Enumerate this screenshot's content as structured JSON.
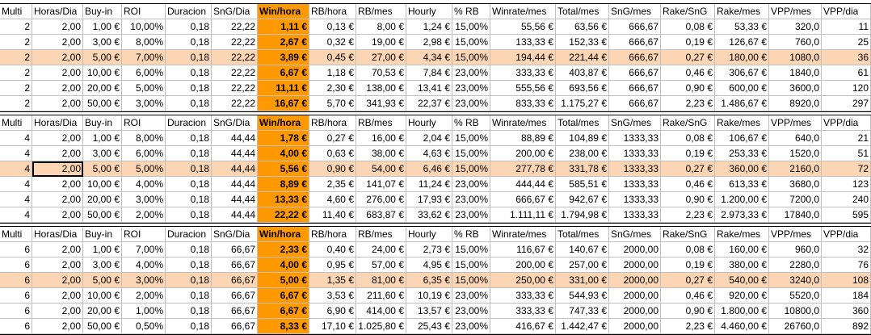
{
  "columns": [
    "Multi",
    "Horas/Dia",
    "Buy-in",
    "ROI",
    "Duracion",
    "SnG/Dia",
    "Win/hora",
    "RB/hora",
    "RB/mes",
    "Hourly",
    "% RB",
    "Winrate/mes",
    "Total/mes",
    "SnG/mes",
    "Rake/SnG",
    "Rake/mes",
    "VPP/mes",
    "VPP/dia"
  ],
  "colors": {
    "win_column": "#ff9900",
    "highlight_row": "#fcd5b4",
    "grid": "#c0c0c0"
  },
  "blocks": [
    {
      "rows": [
        [
          "2",
          "2,00",
          "1,00 €",
          "10,00%",
          "0,18",
          "22,22",
          "1,11 €",
          "0,13 €",
          "8,00 €",
          "1,24 €",
          "15,00%",
          "55,56 €",
          "63,56 €",
          "666,67",
          "0,08 €",
          "53,33 €",
          "320,0",
          "11"
        ],
        [
          "2",
          "2,00",
          "3,00 €",
          "8,00%",
          "0,18",
          "22,22",
          "2,67 €",
          "0,32 €",
          "19,00 €",
          "2,98 €",
          "15,00%",
          "133,33 €",
          "152,33 €",
          "666,67",
          "0,19 €",
          "126,67 €",
          "760,0",
          "25"
        ],
        [
          "2",
          "2,00",
          "5,00 €",
          "7,00%",
          "0,18",
          "22,22",
          "3,89 €",
          "0,45 €",
          "27,00 €",
          "4,34 €",
          "15,00%",
          "194,44 €",
          "221,44 €",
          "666,67",
          "0,27 €",
          "180,00 €",
          "1080,0",
          "36"
        ],
        [
          "2",
          "2,00",
          "10,00 €",
          "6,00%",
          "0,18",
          "22,22",
          "6,67 €",
          "1,18 €",
          "70,53 €",
          "7,84 €",
          "23,00%",
          "333,33 €",
          "403,87 €",
          "666,67",
          "0,46 €",
          "306,67 €",
          "1840,0",
          "61"
        ],
        [
          "2",
          "2,00",
          "20,00 €",
          "5,00%",
          "0,18",
          "22,22",
          "11,11 €",
          "2,30 €",
          "138,00 €",
          "13,41 €",
          "23,00%",
          "555,56 €",
          "693,56 €",
          "666,67",
          "0,90 €",
          "600,00 €",
          "3600,0",
          "120"
        ],
        [
          "2",
          "2,00",
          "50,00 €",
          "3,00%",
          "0,18",
          "22,22",
          "16,67 €",
          "5,70 €",
          "341,93 €",
          "22,37 €",
          "23,00%",
          "833,33 €",
          "1.175,27 €",
          "666,67",
          "2,23 €",
          "1.486,67 €",
          "8920,0",
          "297"
        ]
      ]
    },
    {
      "rows": [
        [
          "4",
          "2,00",
          "1,00 €",
          "8,00%",
          "0,18",
          "44,44",
          "1,78 €",
          "0,27 €",
          "16,00 €",
          "2,04 €",
          "15,00%",
          "88,89 €",
          "104,89 €",
          "1333,33",
          "0,08 €",
          "106,67 €",
          "640,0",
          "21"
        ],
        [
          "4",
          "2,00",
          "3,00 €",
          "6,00%",
          "0,18",
          "44,44",
          "4,00 €",
          "0,63 €",
          "38,00 €",
          "4,63 €",
          "15,00%",
          "200,00 €",
          "238,00 €",
          "1333,33",
          "0,19 €",
          "253,33 €",
          "1520,0",
          "51"
        ],
        [
          "4",
          "2,00",
          "5,00 €",
          "5,00%",
          "0,18",
          "44,44",
          "5,56 €",
          "0,90 €",
          "54,00 €",
          "6,46 €",
          "15,00%",
          "277,78 €",
          "331,78 €",
          "1333,33",
          "0,27 €",
          "360,00 €",
          "2160,0",
          "72"
        ],
        [
          "4",
          "2,00",
          "10,00 €",
          "4,00%",
          "0,18",
          "44,44",
          "8,89 €",
          "2,35 €",
          "141,07 €",
          "11,24 €",
          "23,00%",
          "444,44 €",
          "585,51 €",
          "1333,33",
          "0,46 €",
          "613,33 €",
          "3680,0",
          "123"
        ],
        [
          "4",
          "2,00",
          "20,00 €",
          "3,00%",
          "0,18",
          "44,44",
          "13,33 €",
          "4,60 €",
          "276,00 €",
          "17,93 €",
          "23,00%",
          "666,67 €",
          "942,67 €",
          "1333,33",
          "0,90 €",
          "1.200,00 €",
          "7200,0",
          "240"
        ],
        [
          "4",
          "2,00",
          "50,00 €",
          "2,00%",
          "0,18",
          "44,44",
          "22,22 €",
          "11,40 €",
          "683,87 €",
          "33,62 €",
          "23,00%",
          "1.111,11 €",
          "1.794,98 €",
          "1333,33",
          "2,23 €",
          "2.973,33 €",
          "17840,0",
          "595"
        ]
      ]
    },
    {
      "rows": [
        [
          "6",
          "2,00",
          "1,00 €",
          "7,00%",
          "0,18",
          "66,67",
          "2,33 €",
          "0,40 €",
          "24,00 €",
          "2,73 €",
          "15,00%",
          "116,67 €",
          "140,67 €",
          "2000,00",
          "0,08 €",
          "160,00 €",
          "960,0",
          "32"
        ],
        [
          "6",
          "2,00",
          "3,00 €",
          "4,00%",
          "0,18",
          "66,67",
          "4,00 €",
          "0,95 €",
          "57,00 €",
          "4,95 €",
          "15,00%",
          "200,00 €",
          "257,00 €",
          "2000,00",
          "0,19 €",
          "380,00 €",
          "2280,0",
          "76"
        ],
        [
          "6",
          "2,00",
          "5,00 €",
          "3,00%",
          "0,18",
          "66,67",
          "5,00 €",
          "1,35 €",
          "81,00 €",
          "6,35 €",
          "15,00%",
          "250,00 €",
          "331,00 €",
          "2000,00",
          "0,27 €",
          "540,00 €",
          "3240,0",
          "108"
        ],
        [
          "6",
          "2,00",
          "10,00 €",
          "2,00%",
          "0,18",
          "66,67",
          "6,67 €",
          "3,53 €",
          "211,60 €",
          "10,19 €",
          "23,00%",
          "333,33 €",
          "544,93 €",
          "2000,00",
          "0,46 €",
          "920,00 €",
          "5520,0",
          "184"
        ],
        [
          "6",
          "2,00",
          "20,00 €",
          "1,00%",
          "0,18",
          "66,67",
          "6,67 €",
          "6,90 €",
          "414,00 €",
          "13,57 €",
          "23,00%",
          "333,33 €",
          "747,33 €",
          "2000,00",
          "0,90 €",
          "1.800,00 €",
          "10800,0",
          "360"
        ],
        [
          "6",
          "2,00",
          "50,00 €",
          "0,50%",
          "0,18",
          "66,67",
          "8,33 €",
          "17,10 €",
          "1.025,80 €",
          "25,43 €",
          "23,00%",
          "416,67 €",
          "1.442,47 €",
          "2000,00",
          "2,23 €",
          "4.460,00 €",
          "26760,0",
          "892"
        ]
      ]
    }
  ]
}
